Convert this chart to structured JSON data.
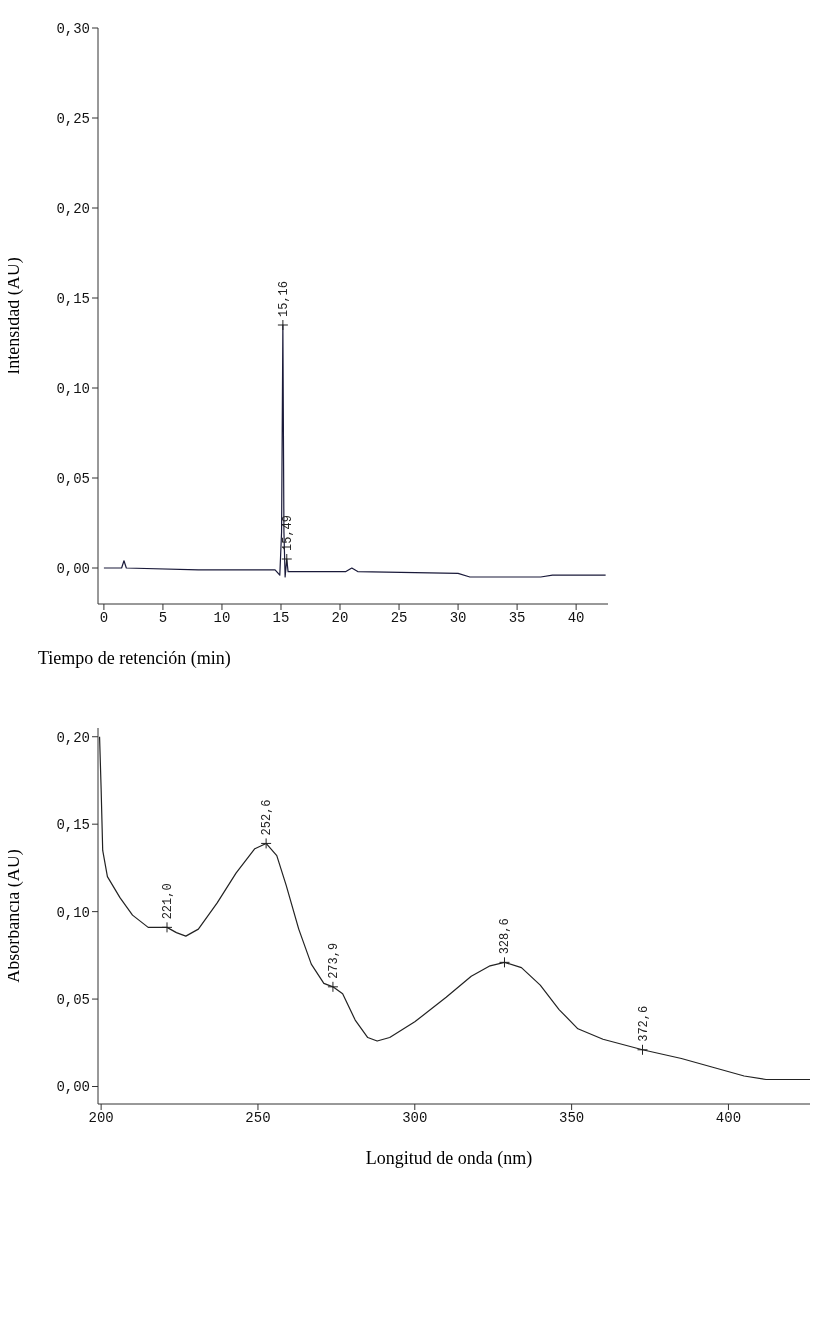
{
  "chart_data": [
    {
      "type": "line",
      "xlabel": "Tiempo de retención (min)",
      "ylabel": "Intensidad (AU)",
      "x": [
        0,
        1.5,
        1.7,
        1.9,
        8,
        14.5,
        14.9,
        15.05,
        15.16,
        15.25,
        15.35,
        15.49,
        15.6,
        20.5,
        21,
        21.5,
        30,
        31,
        37,
        38,
        42.5
      ],
      "values": [
        0,
        0,
        0.004,
        0,
        -0.001,
        -0.001,
        -0.004,
        0.02,
        0.135,
        0.02,
        -0.005,
        0.005,
        -0.002,
        -0.002,
        0,
        -0.002,
        -0.003,
        -0.005,
        -0.005,
        -0.004,
        -0.004
      ],
      "color": "#1a1a3a",
      "xlim": [
        -0.5,
        42.7
      ],
      "xticks": [
        0,
        5,
        10,
        15,
        20,
        25,
        30,
        35,
        40
      ],
      "ylim": [
        -0.02,
        0.3
      ],
      "yticks": [
        {
          "value": 0,
          "label": "0,00"
        },
        {
          "value": 0.05,
          "label": "0,05"
        },
        {
          "value": 0.1,
          "label": "0,10"
        },
        {
          "value": 0.15,
          "label": "0,15"
        },
        {
          "value": 0.2,
          "label": "0,20"
        },
        {
          "value": 0.25,
          "label": "0,25"
        },
        {
          "value": 0.3,
          "label": "0,30"
        }
      ],
      "grid": false,
      "legend": false,
      "marker": "none",
      "annotations": [
        {
          "text": "15,16",
          "x": 15.16,
          "y": 0.135
        },
        {
          "text": "15,49",
          "x": 15.49,
          "y": 0.005
        }
      ]
    },
    {
      "type": "line",
      "xlabel": "Longitud de onda (nm)",
      "ylabel": "Absorbancia (AU)",
      "x": [
        199.5,
        200,
        200.5,
        202,
        206,
        210,
        215,
        221,
        224,
        227,
        231,
        237,
        243,
        249,
        252.6,
        256,
        259,
        263,
        267,
        271,
        273.9,
        277,
        281,
        285,
        288,
        292,
        300,
        310,
        318,
        324,
        328.6,
        334,
        340,
        346,
        352,
        360,
        372.6,
        385,
        395,
        405,
        412,
        426
      ],
      "values": [
        0.2,
        0.17,
        0.135,
        0.12,
        0.108,
        0.098,
        0.091,
        0.091,
        0.088,
        0.086,
        0.09,
        0.105,
        0.122,
        0.136,
        0.139,
        0.132,
        0.115,
        0.09,
        0.07,
        0.059,
        0.057,
        0.053,
        0.038,
        0.028,
        0.026,
        0.028,
        0.037,
        0.051,
        0.063,
        0.069,
        0.071,
        0.068,
        0.058,
        0.044,
        0.033,
        0.027,
        0.021,
        0.016,
        0.011,
        0.006,
        0.004,
        0.004
      ],
      "color": "#222222",
      "xlim": [
        199,
        426
      ],
      "xticks": [
        200,
        250,
        300,
        350,
        400
      ],
      "ylim": [
        -0.01,
        0.205
      ],
      "yticks": [
        {
          "value": 0,
          "label": "0,00"
        },
        {
          "value": 0.05,
          "label": "0,05"
        },
        {
          "value": 0.1,
          "label": "0,10"
        },
        {
          "value": 0.15,
          "label": "0,15"
        },
        {
          "value": 0.2,
          "label": "0,20"
        }
      ],
      "grid": false,
      "legend": false,
      "marker": "none",
      "annotations": [
        {
          "text": "221,0",
          "x": 221,
          "y": 0.091
        },
        {
          "text": "252,6",
          "x": 252.6,
          "y": 0.139
        },
        {
          "text": "273,9",
          "x": 273.9,
          "y": 0.057
        },
        {
          "text": "328,6",
          "x": 328.6,
          "y": 0.071
        },
        {
          "text": "372,6",
          "x": 372.6,
          "y": 0.021
        }
      ]
    }
  ]
}
